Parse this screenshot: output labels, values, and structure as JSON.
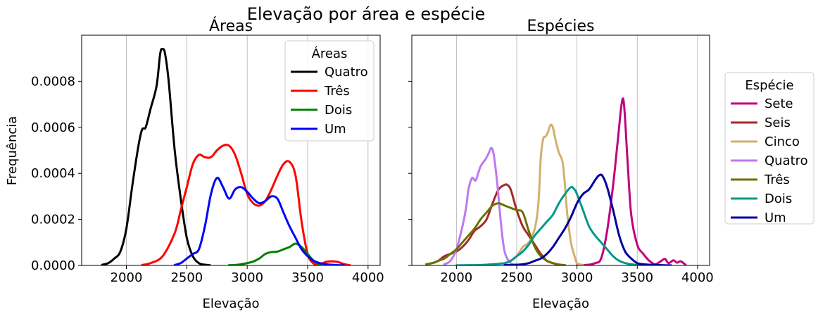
{
  "suptitle": "Elevação por área e espécie",
  "ylabel": "Frequência",
  "chart_data": [
    {
      "type": "line",
      "title": "Áreas",
      "xlabel": "Elevação",
      "ylabel": "Frequência",
      "xlim": [
        1630,
        4100
      ],
      "ylim": [
        0,
        0.001
      ],
      "xticks": [
        2000,
        2500,
        3000,
        3500,
        4000
      ],
      "xtick_labels": [
        "2000",
        "2500",
        "3000",
        "3500",
        "4000"
      ],
      "yticks": [
        0,
        0.0002,
        0.0004,
        0.0006,
        0.0008
      ],
      "ytick_labels": [
        "0.0000",
        "0.0002",
        "0.0004",
        "0.0006",
        "0.0008"
      ],
      "grid": "vertical",
      "legend": {
        "title": "Áreas",
        "placement": "upper right"
      },
      "series": [
        {
          "name": "Quatro",
          "color": "#000000",
          "x": [
            1800,
            1850,
            1900,
            1950,
            2000,
            2050,
            2100,
            2130,
            2160,
            2200,
            2250,
            2280,
            2300,
            2320,
            2350,
            2400,
            2450,
            2500,
            2550,
            2600,
            2650,
            2690
          ],
          "y": [
            3e-06,
            1e-05,
            3e-05,
            6e-05,
            0.00016,
            0.00035,
            0.00052,
            0.00059,
            0.0006,
            0.00068,
            0.00078,
            0.00092,
            0.00094,
            0.00092,
            0.0008,
            0.0005,
            0.00029,
            0.00012,
            4e-05,
            1e-05,
            3e-06,
            1e-06
          ]
        },
        {
          "name": "Três",
          "color": "#ff0000",
          "x": [
            2130,
            2200,
            2300,
            2400,
            2450,
            2500,
            2550,
            2600,
            2650,
            2700,
            2750,
            2800,
            2850,
            2900,
            2950,
            3000,
            3050,
            3100,
            3150,
            3200,
            3250,
            3300,
            3350,
            3400,
            3450,
            3500,
            3550,
            3600,
            3650,
            3700,
            3750,
            3800,
            3850
          ],
          "y": [
            2e-06,
            1e-05,
            4e-05,
            0.00014,
            0.00024,
            0.00034,
            0.00044,
            0.00048,
            0.00047,
            0.00047,
            0.0005,
            0.00052,
            0.00052,
            0.00048,
            0.0004,
            0.00031,
            0.00027,
            0.00026,
            0.00028,
            0.00033,
            0.00039,
            0.00044,
            0.00045,
            0.00039,
            0.00019,
            5e-05,
            8e-06,
            5e-06,
            1.5e-05,
            1.8e-05,
            1.5e-05,
            6e-06,
            1e-06
          ]
        },
        {
          "name": "Dois",
          "color": "#008000",
          "x": [
            2850,
            2900,
            2950,
            3000,
            3050,
            3100,
            3150,
            3200,
            3250,
            3300,
            3350,
            3400,
            3450,
            3500,
            3550,
            3600
          ],
          "y": [
            1e-06,
            2e-06,
            5e-06,
            1e-05,
            1.7e-05,
            3e-05,
            5e-05,
            5.8e-05,
            6e-05,
            7e-05,
            8e-05,
            9.5e-05,
            8e-05,
            5e-05,
            2e-05,
            4e-06
          ]
        },
        {
          "name": "Um",
          "color": "#0000ff",
          "x": [
            2400,
            2450,
            2500,
            2550,
            2600,
            2650,
            2700,
            2750,
            2800,
            2850,
            2900,
            2950,
            3000,
            3050,
            3100,
            3150,
            3200,
            3250,
            3300,
            3350,
            3400,
            3450,
            3500,
            3550,
            3600,
            3650,
            3700,
            3750,
            3800
          ],
          "y": [
            2e-06,
            1e-05,
            3e-05,
            5e-05,
            7e-05,
            0.00017,
            0.00031,
            0.00038,
            0.00034,
            0.00029,
            0.00033,
            0.00034,
            0.00032,
            0.00029,
            0.00027,
            0.00028,
            0.0003,
            0.00029,
            0.00023,
            0.00017,
            0.00012,
            7e-05,
            4e-05,
            2e-05,
            1e-05,
            5e-06,
            3e-06,
            1e-06,
            5e-07
          ]
        }
      ]
    },
    {
      "type": "line",
      "title": "Espécies",
      "xlabel": "Elevação",
      "xlim": [
        1630,
        4100
      ],
      "ylim": [
        0,
        0.001
      ],
      "xticks": [
        2000,
        2500,
        3000,
        3500,
        4000
      ],
      "xtick_labels": [
        "2000",
        "2500",
        "3000",
        "3500",
        "4000"
      ],
      "grid": "vertical",
      "legend": {
        "title": "Espécie",
        "placement": "outside right"
      },
      "series": [
        {
          "name": "Sete",
          "color": "#c00080",
          "x": [
            3000,
            3100,
            3150,
            3200,
            3250,
            3300,
            3340,
            3370,
            3390,
            3420,
            3450,
            3500,
            3550,
            3600,
            3650,
            3700,
            3730,
            3760,
            3800,
            3830,
            3860,
            3900
          ],
          "y": [
            5e-07,
            3e-06,
            1e-05,
            3e-05,
            0.00015,
            0.00035,
            0.00055,
            0.0007,
            0.0007,
            0.00045,
            0.00022,
            9e-05,
            5e-05,
            2e-05,
            5e-06,
            2e-05,
            2.8e-05,
            1e-05,
            2.2e-05,
            1.2e-05,
            1.8e-05,
            3e-06
          ]
        },
        {
          "name": "Seis",
          "color": "#a52a2a",
          "x": [
            1750,
            1800,
            1850,
            1900,
            1950,
            2000,
            2050,
            2100,
            2150,
            2200,
            2250,
            2300,
            2350,
            2400,
            2420,
            2450,
            2500,
            2550,
            2600,
            2650,
            2700,
            2750,
            2800,
            2850,
            2900
          ],
          "y": [
            5e-06,
            1e-05,
            2e-05,
            4e-05,
            5e-05,
            6e-05,
            8e-05,
            0.00011,
            0.00015,
            0.00017,
            0.0002,
            0.00027,
            0.00033,
            0.00035,
            0.00035,
            0.00033,
            0.00024,
            0.00017,
            0.00013,
            9e-05,
            5e-05,
            2e-05,
            1e-05,
            3e-06,
            1e-06
          ]
        },
        {
          "name": "Cinco",
          "color": "#d2b06c",
          "x": [
            2400,
            2450,
            2500,
            2550,
            2600,
            2650,
            2680,
            2700,
            2720,
            2740,
            2760,
            2780,
            2800,
            2820,
            2850,
            2880,
            2900,
            2920,
            2950,
            2980,
            3000,
            3050
          ],
          "y": [
            5e-06,
            2e-05,
            4e-05,
            8e-05,
            0.0001,
            0.00016,
            0.00027,
            0.00047,
            0.00055,
            0.00056,
            0.00058,
            0.00061,
            0.0006,
            0.00055,
            0.00049,
            0.00045,
            0.00035,
            0.00022,
            0.0001,
            4e-05,
            1e-05,
            2e-06
          ]
        },
        {
          "name": "Quatro",
          "color": "#bf78f0",
          "x": [
            1900,
            1950,
            2000,
            2050,
            2080,
            2100,
            2130,
            2160,
            2200,
            2240,
            2270,
            2290,
            2310,
            2340,
            2370,
            2400,
            2450,
            2500,
            2550
          ],
          "y": [
            5e-06,
            2e-05,
            7e-05,
            0.00017,
            0.00025,
            0.00033,
            0.00038,
            0.00037,
            0.00043,
            0.00046,
            0.00049,
            0.00051,
            0.00048,
            0.00035,
            0.00018,
            6e-05,
            1e-05,
            3e-06,
            1e-06
          ]
        },
        {
          "name": "Três",
          "color": "#6b7000",
          "x": [
            1750,
            1800,
            1850,
            1900,
            1950,
            2000,
            2050,
            2100,
            2150,
            2200,
            2250,
            2300,
            2350,
            2400,
            2450,
            2500,
            2550,
            2600,
            2650,
            2700,
            2750,
            2800,
            2850,
            2900
          ],
          "y": [
            5e-06,
            1e-05,
            2e-05,
            3e-05,
            5e-05,
            7e-05,
            0.0001,
            0.00013,
            0.00016,
            0.0002,
            0.00023,
            0.00026,
            0.00027,
            0.00026,
            0.00025,
            0.00024,
            0.00023,
            0.00015,
            8e-05,
            4e-05,
            2e-05,
            1e-05,
            4e-06,
            1e-06
          ]
        },
        {
          "name": "Dois",
          "color": "#00998a",
          "x": [
            2000,
            2100,
            2200,
            2300,
            2400,
            2450,
            2500,
            2550,
            2600,
            2650,
            2700,
            2750,
            2800,
            2850,
            2900,
            2950,
            2980,
            3000,
            3050,
            3100,
            3150,
            3200,
            3250,
            3300,
            3350,
            3400,
            3450,
            3500,
            3550,
            3600
          ],
          "y": [
            5e-07,
            1e-06,
            2e-06,
            5e-06,
            1e-05,
            2e-05,
            4e-05,
            6e-05,
            9e-05,
            0.00013,
            0.00016,
            0.00019,
            0.00022,
            0.00027,
            0.00031,
            0.00034,
            0.00033,
            0.00031,
            0.00024,
            0.00017,
            0.00013,
            0.0001,
            7e-05,
            4e-05,
            2e-05,
            1e-05,
            5e-06,
            2e-06,
            1e-06,
            5e-07
          ]
        },
        {
          "name": "Um",
          "color": "#00009f",
          "x": [
            2400,
            2500,
            2550,
            2600,
            2650,
            2700,
            2750,
            2800,
            2850,
            2900,
            2950,
            3000,
            3050,
            3100,
            3150,
            3180,
            3210,
            3250,
            3300,
            3350,
            3400,
            3450,
            3500,
            3550,
            3600,
            3650,
            3700,
            3750,
            3780
          ],
          "y": [
            1e-06,
            3e-06,
            5e-06,
            1e-05,
            2e-05,
            3e-05,
            5e-05,
            8e-05,
            0.00012,
            0.00016,
            0.00021,
            0.00027,
            0.00031,
            0.00033,
            0.00037,
            0.00039,
            0.00039,
            0.00034,
            0.00024,
            0.00013,
            6e-05,
            3e-05,
            1e-05,
            5e-06,
            3e-06,
            2e-06,
            1e-06,
            5e-07,
            2e-07
          ]
        }
      ]
    }
  ]
}
